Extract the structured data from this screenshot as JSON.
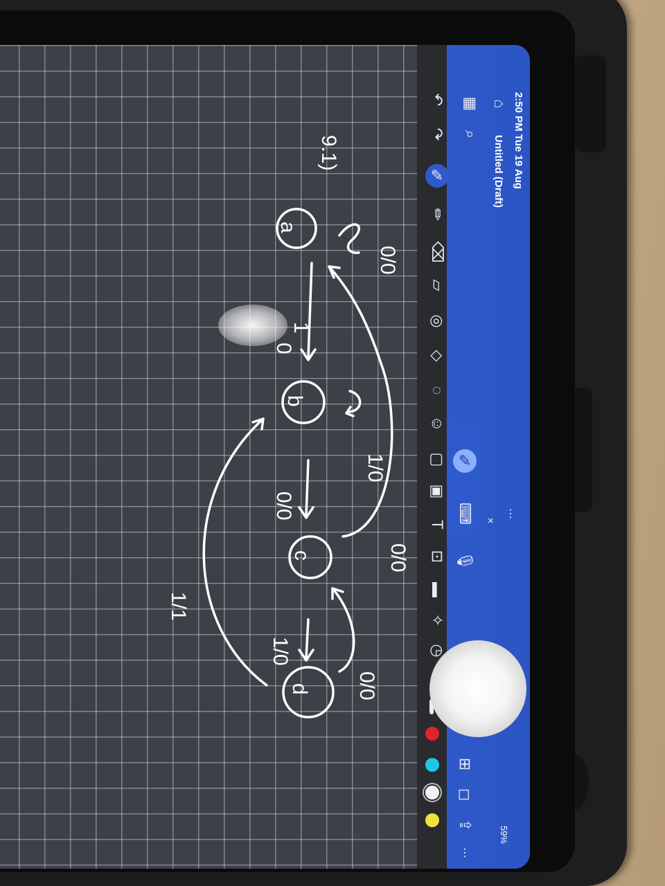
{
  "status_bar": {
    "time_date": "2:50 PM   Tue 19 Aug",
    "battery": "59%"
  },
  "document": {
    "title": "Untitled (Draft)"
  },
  "icons": [
    "home-icon",
    "grid-icon",
    "search-icon",
    "undo-icon",
    "redo-icon",
    "pen-icon",
    "pencil-icon",
    "eraser-icon",
    "highlighter-icon",
    "lasso-icon",
    "shapes-icon",
    "sticker-icon",
    "image-icon",
    "text-icon",
    "camera-icon",
    "ruler-icon",
    "microphone-icon",
    "keyboard-icon",
    "close-icon",
    "add-page-icon",
    "bookmark-icon",
    "share-icon",
    "more-icon"
  ],
  "colors": {
    "red": "#e0242b",
    "cyan": "#22c6e6",
    "white": "#f2f2f2",
    "yellow": "#f2e23a",
    "toolbar_blue": "#2b55c4"
  },
  "drawing": {
    "question_label": "9.1)",
    "states": [
      "a",
      "b",
      "c",
      "d"
    ],
    "transitions": [
      "0/0",
      "1",
      "0",
      "1/0",
      "0/0",
      "0/0",
      "1/0",
      "0/0",
      "1/1"
    ]
  }
}
